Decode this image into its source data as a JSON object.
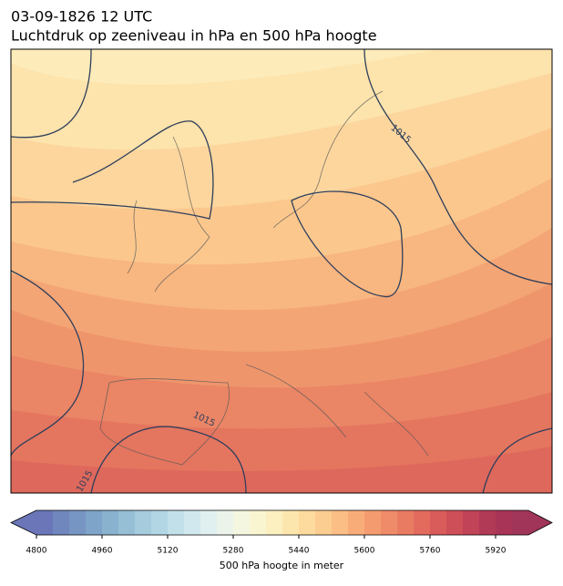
{
  "title": "03-09-1826 12 UTC",
  "subtitle": "Luchtdruk op zeeniveau in hPa en 500 hPa hoogte",
  "contour_labels": [
    "1015",
    "1015",
    "1015"
  ],
  "colorbar": {
    "label": "500 hPa hoogte in meter",
    "lim": [
      4800,
      6000
    ],
    "ticks": [
      4800,
      4960,
      5120,
      5280,
      5440,
      5600,
      5760,
      5920
    ],
    "colors": [
      "#6a76b8",
      "#7087bd",
      "#7795c3",
      "#7fa4c9",
      "#89b2cf",
      "#96bfd6",
      "#a5cbdd",
      "#b3d6e4",
      "#c2e0ea",
      "#d2e8ef",
      "#e0efef",
      "#ebf3ea",
      "#f4f6df",
      "#f9f5d1",
      "#fcefc0",
      "#fde6ae",
      "#fdda9e",
      "#fccd90",
      "#fbbe84",
      "#f8ad79",
      "#f49c70",
      "#ef8b69",
      "#e97b63",
      "#e26b5e",
      "#d95c5a",
      "#ce4f58",
      "#c14357",
      "#b13a57",
      "#a83558",
      "#a03459"
    ]
  }
}
